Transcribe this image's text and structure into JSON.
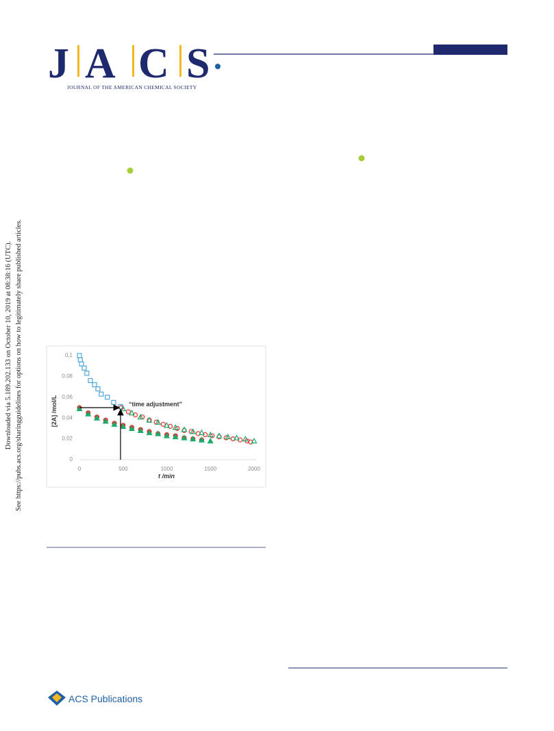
{
  "header": {
    "logo": [
      "J",
      "A",
      "C",
      "S"
    ],
    "journal": "JOURNAL OF THE AMERICAN CHEMICAL SOCIETY"
  },
  "sidebar": {
    "lines": [
      "Downloaded via 5.189.202.133 on October 10, 2019 at 08:38:16 (UTC).",
      "See https://pubs.acs.org/sharingguidelines for options on how to legitimately share published articles."
    ]
  },
  "chart_data": {
    "type": "scatter",
    "x_label": "t  /min",
    "y_label": "[2A] /mol/L",
    "annotation": "“time adjustment”",
    "xlim": [
      0,
      2000
    ],
    "xticks": [
      0,
      500,
      1000,
      1500,
      2000
    ],
    "ylim": [
      0,
      0.1
    ],
    "yticks": [
      0,
      {
        "value": 0.02,
        "label": "0,02"
      },
      {
        "value": 0.04,
        "label": "0,04"
      },
      {
        "value": 0.06,
        "label": "0,06"
      },
      {
        "value": 0.08,
        "label": "0,08"
      },
      {
        "value": 0.1,
        "label": "0,1"
      }
    ],
    "grid": false,
    "series": [
      {
        "color": "#4ea6dc",
        "marker": "square",
        "filled": false,
        "x": [
          0,
          10,
          24,
          55,
          85,
          125,
          173,
          212,
          250,
          320,
          392,
          470
        ],
        "values": [
          0.1,
          0.096,
          0.092,
          0.088,
          0.083,
          0.076,
          0.072,
          0.068,
          0.063,
          0.06,
          0.055,
          0.051
        ]
      },
      {
        "color": "#e8312f",
        "marker": "circle",
        "filled": false,
        "x": [
          480,
          560,
          640,
          720,
          800,
          880,
          960,
          1040,
          1120,
          1200,
          1280,
          1360,
          1440,
          1520,
          1600,
          1680,
          1760,
          1840,
          1920,
          1960
        ],
        "values": [
          0.05,
          0.046,
          0.043,
          0.041,
          0.038,
          0.036,
          0.034,
          0.032,
          0.03,
          0.028,
          0.027,
          0.025,
          0.024,
          0.023,
          0.022,
          0.021,
          0.02,
          0.019,
          0.018,
          0.017
        ]
      },
      {
        "color": "#1aab6b",
        "marker": "triangle",
        "filled": false,
        "x": [
          500,
          600,
          700,
          800,
          900,
          1000,
          1100,
          1200,
          1300,
          1400,
          1500,
          1600,
          1700,
          1800,
          1900,
          2000
        ],
        "values": [
          0.049,
          0.045,
          0.041,
          0.038,
          0.036,
          0.033,
          0.031,
          0.029,
          0.027,
          0.026,
          0.024,
          0.023,
          0.022,
          0.021,
          0.02,
          0.018
        ]
      },
      {
        "color": "#e8312f",
        "marker": "circle",
        "filled": true,
        "x": [
          0,
          100,
          200,
          300,
          400,
          500,
          600,
          700,
          800,
          900,
          1000,
          1100,
          1200,
          1300,
          1400
        ],
        "values": [
          0.05,
          0.045,
          0.041,
          0.038,
          0.035,
          0.033,
          0.031,
          0.029,
          0.027,
          0.025,
          0.024,
          0.023,
          0.021,
          0.02,
          0.019
        ]
      },
      {
        "color": "#1aab6b",
        "marker": "triangle",
        "filled": true,
        "x": [
          0,
          100,
          200,
          300,
          400,
          500,
          600,
          700,
          800,
          900,
          1000,
          1100,
          1200,
          1300,
          1400,
          1500
        ],
        "values": [
          0.049,
          0.044,
          0.04,
          0.037,
          0.034,
          0.032,
          0.03,
          0.028,
          0.026,
          0.025,
          0.023,
          0.022,
          0.021,
          0.02,
          0.019,
          0.018
        ]
      }
    ]
  },
  "footer": {
    "publisher": "ACS Publications"
  }
}
